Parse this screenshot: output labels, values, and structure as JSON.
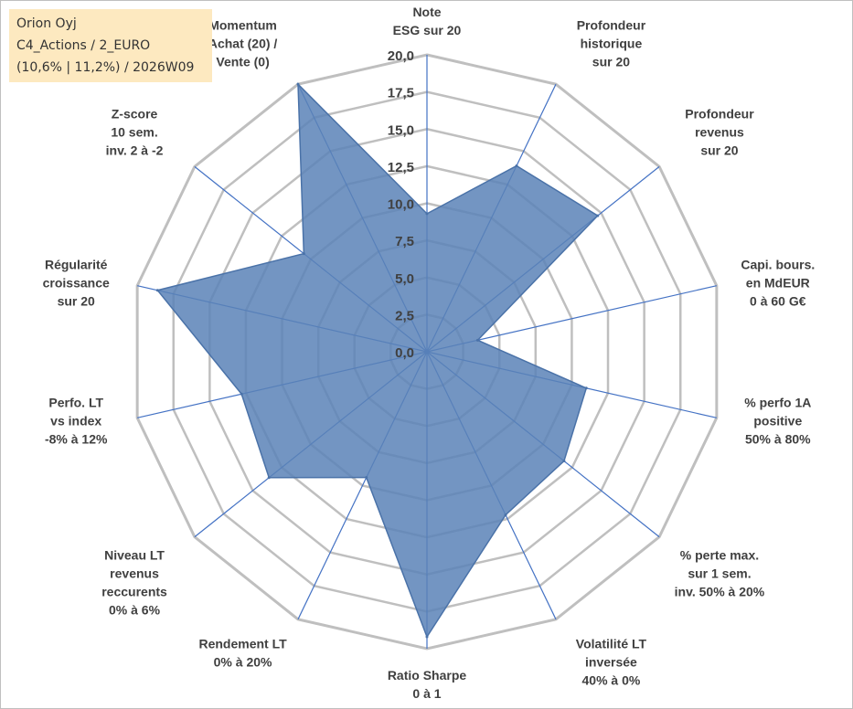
{
  "info": {
    "company": "Orion Oyj",
    "portfolio": "C4_Actions / 2_EURO",
    "stats": "(10,6% | 11,2%) / 2026W09"
  },
  "chart_data": {
    "type": "radar",
    "title": "",
    "rmin": 0,
    "rmax": 20,
    "ticks": [
      "0,0",
      "2,5",
      "5,0",
      "7,5",
      "10,0",
      "12,5",
      "15,0",
      "17,5",
      "20,0"
    ],
    "axes": [
      {
        "lines": [
          "Note",
          "ESG sur 20"
        ]
      },
      {
        "lines": [
          "Profondeur",
          "historique",
          "sur 20"
        ]
      },
      {
        "lines": [
          "Profondeur",
          "revenus",
          "sur 20"
        ]
      },
      {
        "lines": [
          "Capi. bours.",
          "en MdEUR",
          "0 à 60 G€"
        ]
      },
      {
        "lines": [
          "% perfo 1A",
          "positive",
          "50% à 80%"
        ]
      },
      {
        "lines": [
          "% perte max.",
          "sur 1 sem.",
          "inv. 50% à 20%"
        ]
      },
      {
        "lines": [
          "Volatilité LT",
          "inversée",
          "40% à 0%"
        ]
      },
      {
        "lines": [
          "Ratio Sharpe",
          "0 à 1"
        ]
      },
      {
        "lines": [
          "Rendement LT",
          "0% à 20%"
        ]
      },
      {
        "lines": [
          "Niveau LT",
          "revenus",
          "reccurents",
          "0% à 6%"
        ]
      },
      {
        "lines": [
          "Perfo. LT",
          "vs index",
          "-8% à 12%"
        ]
      },
      {
        "lines": [
          "Régularité",
          "croissance",
          "sur 20"
        ]
      },
      {
        "lines": [
          "Z-score",
          "10 sem.",
          "inv. 2 à -2"
        ]
      },
      {
        "lines": [
          "Momentum",
          "Achat (20) /",
          "Vente (0)"
        ]
      }
    ],
    "series": [
      {
        "name": "Orion Oyj",
        "values": [
          9.3,
          13.9,
          14.7,
          3.5,
          11.0,
          11.8,
          12.2,
          19.2,
          9.4,
          13.6,
          12.8,
          18.6,
          10.6,
          20.0
        ]
      }
    ],
    "colors": {
      "fill": "#5b82b7",
      "stroke": "#4a72a8",
      "spoke": "#4472c4",
      "grid": "#bfbfbf",
      "info_bg": "#fde9c0"
    }
  }
}
